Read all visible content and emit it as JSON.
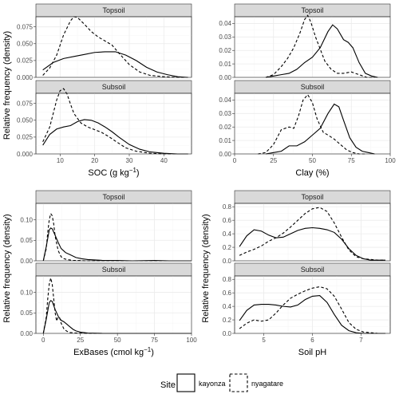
{
  "legend": {
    "title": "Site",
    "items": [
      {
        "label": "kayonza",
        "dash": "solid"
      },
      {
        "label": "nyagatare",
        "dash": "dashed"
      }
    ]
  },
  "chart_data": [
    {
      "type": "line",
      "variable": "SOC",
      "xlabel": "SOC (g kg",
      "xlabel_sup": "−1",
      "xlabel_end": ")",
      "ylabel": "Relative frequency (density)",
      "xlim": [
        3,
        48
      ],
      "ylim": [
        0,
        0.09
      ],
      "xticks": [
        10,
        20,
        30,
        40
      ],
      "yticks": [
        0.0,
        0.025,
        0.05,
        0.075
      ],
      "ytick_labels": [
        "0.000",
        "0.025",
        "0.050",
        "0.075"
      ],
      "facets": [
        {
          "label": "Topsoil",
          "series": [
            {
              "name": "kayonza",
              "x": [
                5,
                8,
                11,
                14,
                17,
                20,
                23,
                26,
                29,
                32,
                35,
                38,
                41,
                44,
                47
              ],
              "y": [
                0.011,
                0.022,
                0.028,
                0.031,
                0.034,
                0.037,
                0.038,
                0.038,
                0.033,
                0.025,
                0.015,
                0.008,
                0.004,
                0.001,
                0.0
              ]
            },
            {
              "name": "nyagatare",
              "x": [
                5,
                7,
                9,
                11,
                13,
                14,
                15,
                17,
                19,
                21,
                23,
                25,
                27,
                30,
                33,
                36,
                40,
                44,
                47
              ],
              "y": [
                0.003,
                0.014,
                0.033,
                0.063,
                0.084,
                0.09,
                0.089,
                0.079,
                0.068,
                0.06,
                0.054,
                0.048,
                0.036,
                0.019,
                0.008,
                0.003,
                0.001,
                0.0,
                0.0
              ]
            }
          ]
        },
        {
          "label": "Subsoil",
          "series": [
            {
              "name": "kayonza",
              "x": [
                5,
                7,
                9,
                11,
                13,
                15,
                17,
                19,
                21,
                23,
                25,
                27,
                30,
                33,
                36,
                40,
                44,
                47
              ],
              "y": [
                0.013,
                0.029,
                0.037,
                0.04,
                0.042,
                0.048,
                0.051,
                0.05,
                0.046,
                0.04,
                0.033,
                0.025,
                0.014,
                0.007,
                0.003,
                0.001,
                0.0,
                0.0
              ]
            },
            {
              "name": "nyagatare",
              "x": [
                5,
                7,
                8,
                9,
                10,
                11,
                12,
                13,
                14,
                16,
                18,
                20,
                22,
                24,
                26,
                29,
                32,
                36,
                40,
                44,
                47
              ],
              "y": [
                0.018,
                0.04,
                0.06,
                0.08,
                0.094,
                0.097,
                0.089,
                0.074,
                0.06,
                0.046,
                0.04,
                0.036,
                0.032,
                0.026,
                0.019,
                0.009,
                0.004,
                0.001,
                0.0,
                0.0,
                0.0
              ]
            }
          ]
        }
      ]
    },
    {
      "type": "line",
      "variable": "Clay",
      "xlabel": "Clay (%)",
      "ylabel": "",
      "xlim": [
        0,
        100
      ],
      "ylim": [
        0,
        0.045
      ],
      "xticks": [
        0,
        25,
        50,
        75,
        100
      ],
      "yticks": [
        0.0,
        0.01,
        0.02,
        0.03,
        0.04
      ],
      "ytick_labels": [
        "0.00",
        "0.01",
        "0.02",
        "0.03",
        "0.04"
      ],
      "facets": [
        {
          "label": "Topsoil",
          "series": [
            {
              "name": "kayonza",
              "x": [
                20,
                25,
                30,
                35,
                40,
                45,
                50,
                55,
                60,
                63,
                66,
                70,
                73,
                76,
                80,
                84,
                88,
                92
              ],
              "y": [
                0.0,
                0.001,
                0.002,
                0.003,
                0.006,
                0.011,
                0.015,
                0.022,
                0.034,
                0.039,
                0.036,
                0.028,
                0.026,
                0.022,
                0.011,
                0.003,
                0.001,
                0.0
              ]
            },
            {
              "name": "nyagatare",
              "x": [
                20,
                25,
                30,
                34,
                38,
                42,
                45,
                47,
                49,
                52,
                55,
                58,
                62,
                66,
                70,
                75,
                80,
                85,
                90
              ],
              "y": [
                0.0,
                0.002,
                0.008,
                0.014,
                0.022,
                0.033,
                0.043,
                0.046,
                0.041,
                0.03,
                0.021,
                0.012,
                0.006,
                0.003,
                0.003,
                0.004,
                0.002,
                0.0,
                0.0
              ]
            }
          ]
        },
        {
          "label": "Subsoil",
          "series": [
            {
              "name": "kayonza",
              "x": [
                20,
                25,
                30,
                35,
                40,
                45,
                50,
                55,
                60,
                64,
                67,
                70,
                74,
                78,
                82,
                86,
                90
              ],
              "y": [
                0.0,
                0.001,
                0.002,
                0.006,
                0.006,
                0.009,
                0.014,
                0.019,
                0.03,
                0.037,
                0.035,
                0.025,
                0.012,
                0.005,
                0.002,
                0.001,
                0.0
              ]
            },
            {
              "name": "nyagatare",
              "x": [
                15,
                20,
                25,
                30,
                35,
                38,
                41,
                44,
                47,
                50,
                53,
                57,
                60,
                64,
                68,
                72,
                76,
                80,
                85
              ],
              "y": [
                0.0,
                0.001,
                0.007,
                0.018,
                0.02,
                0.019,
                0.028,
                0.04,
                0.044,
                0.038,
                0.026,
                0.016,
                0.014,
                0.011,
                0.007,
                0.003,
                0.001,
                0.0,
                0.0
              ]
            }
          ]
        }
      ]
    },
    {
      "type": "line",
      "variable": "ExBases",
      "xlabel": "ExBases (cmol kg",
      "xlabel_sup": "−1",
      "xlabel_end": ")",
      "ylabel": "Relative frequency (density)",
      "xlim": [
        -5,
        100
      ],
      "ylim": [
        0,
        0.14
      ],
      "xticks": [
        0,
        25,
        50,
        75,
        100
      ],
      "yticks": [
        0.0,
        0.05,
        0.1
      ],
      "ytick_labels": [
        "0.00",
        "0.05",
        "0.10"
      ],
      "facets": [
        {
          "label": "Topsoil",
          "series": [
            {
              "name": "kayonza",
              "x": [
                0,
                2,
                4,
                5,
                6,
                8,
                10,
                12,
                15,
                18,
                22,
                26,
                30,
                35,
                40,
                50,
                60,
                75,
                85,
                95,
                100
              ],
              "y": [
                0.0,
                0.035,
                0.075,
                0.08,
                0.078,
                0.062,
                0.045,
                0.03,
                0.02,
                0.015,
                0.008,
                0.005,
                0.003,
                0.002,
                0.001,
                0.001,
                0.0,
                0.001,
                0.0,
                0.0,
                0.0
              ]
            },
            {
              "name": "nyagatare",
              "x": [
                0,
                2,
                3,
                4,
                5,
                6,
                7,
                8,
                10,
                12,
                14,
                16,
                18,
                20,
                23,
                28,
                35,
                50,
                70,
                100
              ],
              "y": [
                0.0,
                0.03,
                0.07,
                0.1,
                0.115,
                0.11,
                0.09,
                0.06,
                0.025,
                0.01,
                0.005,
                0.003,
                0.002,
                0.001,
                0.001,
                0.0,
                0.0,
                0.0,
                0.0,
                0.0
              ]
            }
          ]
        },
        {
          "label": "Subsoil",
          "series": [
            {
              "name": "kayonza",
              "x": [
                0,
                2,
                4,
                5,
                6,
                8,
                10,
                12,
                14,
                16,
                18,
                20,
                22,
                25,
                30,
                40,
                60,
                100
              ],
              "y": [
                0.0,
                0.035,
                0.075,
                0.08,
                0.078,
                0.058,
                0.042,
                0.032,
                0.028,
                0.022,
                0.016,
                0.01,
                0.006,
                0.003,
                0.001,
                0.0,
                0.0,
                0.0
              ]
            },
            {
              "name": "nyagatare",
              "x": [
                0,
                2,
                3,
                4,
                5,
                6,
                7,
                8,
                9,
                10,
                11,
                12,
                14,
                16,
                18,
                22,
                30,
                50,
                100
              ],
              "y": [
                0.0,
                0.04,
                0.085,
                0.12,
                0.135,
                0.12,
                0.085,
                0.05,
                0.03,
                0.04,
                0.038,
                0.025,
                0.01,
                0.005,
                0.002,
                0.001,
                0.0,
                0.0,
                0.0
              ]
            }
          ]
        }
      ]
    },
    {
      "type": "line",
      "variable": "Soil pH",
      "xlabel": "Soil pH",
      "ylabel": "Relative frequency (density)",
      "xlim": [
        4.4,
        7.6
      ],
      "ylim": [
        0,
        0.85
      ],
      "xticks": [
        5,
        6,
        7
      ],
      "yticks": [
        0.0,
        0.2,
        0.4,
        0.6,
        0.8
      ],
      "ytick_labels": [
        "0.0",
        "0.2",
        "0.4",
        "0.6",
        "0.8"
      ],
      "facets": [
        {
          "label": "Topsoil",
          "series": [
            {
              "name": "kayonza",
              "x": [
                4.5,
                4.65,
                4.8,
                4.95,
                5.1,
                5.25,
                5.4,
                5.55,
                5.7,
                5.85,
                6.0,
                6.15,
                6.3,
                6.45,
                6.6,
                6.75,
                6.9,
                7.05,
                7.2,
                7.35,
                7.5
              ],
              "y": [
                0.21,
                0.37,
                0.46,
                0.44,
                0.38,
                0.34,
                0.35,
                0.4,
                0.45,
                0.48,
                0.49,
                0.48,
                0.46,
                0.42,
                0.32,
                0.18,
                0.08,
                0.03,
                0.01,
                0.01,
                0.01
              ]
            },
            {
              "name": "nyagatare",
              "x": [
                4.5,
                4.65,
                4.8,
                4.95,
                5.1,
                5.25,
                5.4,
                5.55,
                5.7,
                5.85,
                6.0,
                6.15,
                6.3,
                6.45,
                6.6,
                6.75,
                6.9,
                7.05,
                7.2,
                7.35,
                7.5
              ],
              "y": [
                0.08,
                0.13,
                0.17,
                0.22,
                0.29,
                0.34,
                0.41,
                0.5,
                0.6,
                0.7,
                0.77,
                0.79,
                0.73,
                0.56,
                0.35,
                0.16,
                0.06,
                0.03,
                0.02,
                0.01,
                0.01
              ]
            }
          ]
        },
        {
          "label": "Subsoil",
          "series": [
            {
              "name": "kayonza",
              "x": [
                4.5,
                4.65,
                4.8,
                4.95,
                5.1,
                5.25,
                5.4,
                5.55,
                5.7,
                5.85,
                6.0,
                6.15,
                6.3,
                6.45,
                6.6,
                6.75,
                6.9,
                7.05,
                7.2,
                7.35,
                7.5
              ],
              "y": [
                0.19,
                0.34,
                0.42,
                0.43,
                0.43,
                0.42,
                0.4,
                0.39,
                0.42,
                0.5,
                0.55,
                0.56,
                0.46,
                0.28,
                0.12,
                0.04,
                0.01,
                0.0,
                0.0,
                0.0,
                0.0
              ]
            },
            {
              "name": "nyagatare",
              "x": [
                4.5,
                4.65,
                4.8,
                4.95,
                5.1,
                5.25,
                5.4,
                5.55,
                5.7,
                5.85,
                6.0,
                6.15,
                6.3,
                6.45,
                6.6,
                6.75,
                6.9,
                7.05,
                7.2,
                7.35,
                7.5
              ],
              "y": [
                0.07,
                0.15,
                0.2,
                0.18,
                0.2,
                0.3,
                0.42,
                0.52,
                0.58,
                0.63,
                0.67,
                0.69,
                0.66,
                0.55,
                0.36,
                0.16,
                0.06,
                0.02,
                0.01,
                0.0,
                0.0
              ]
            }
          ]
        }
      ]
    }
  ]
}
